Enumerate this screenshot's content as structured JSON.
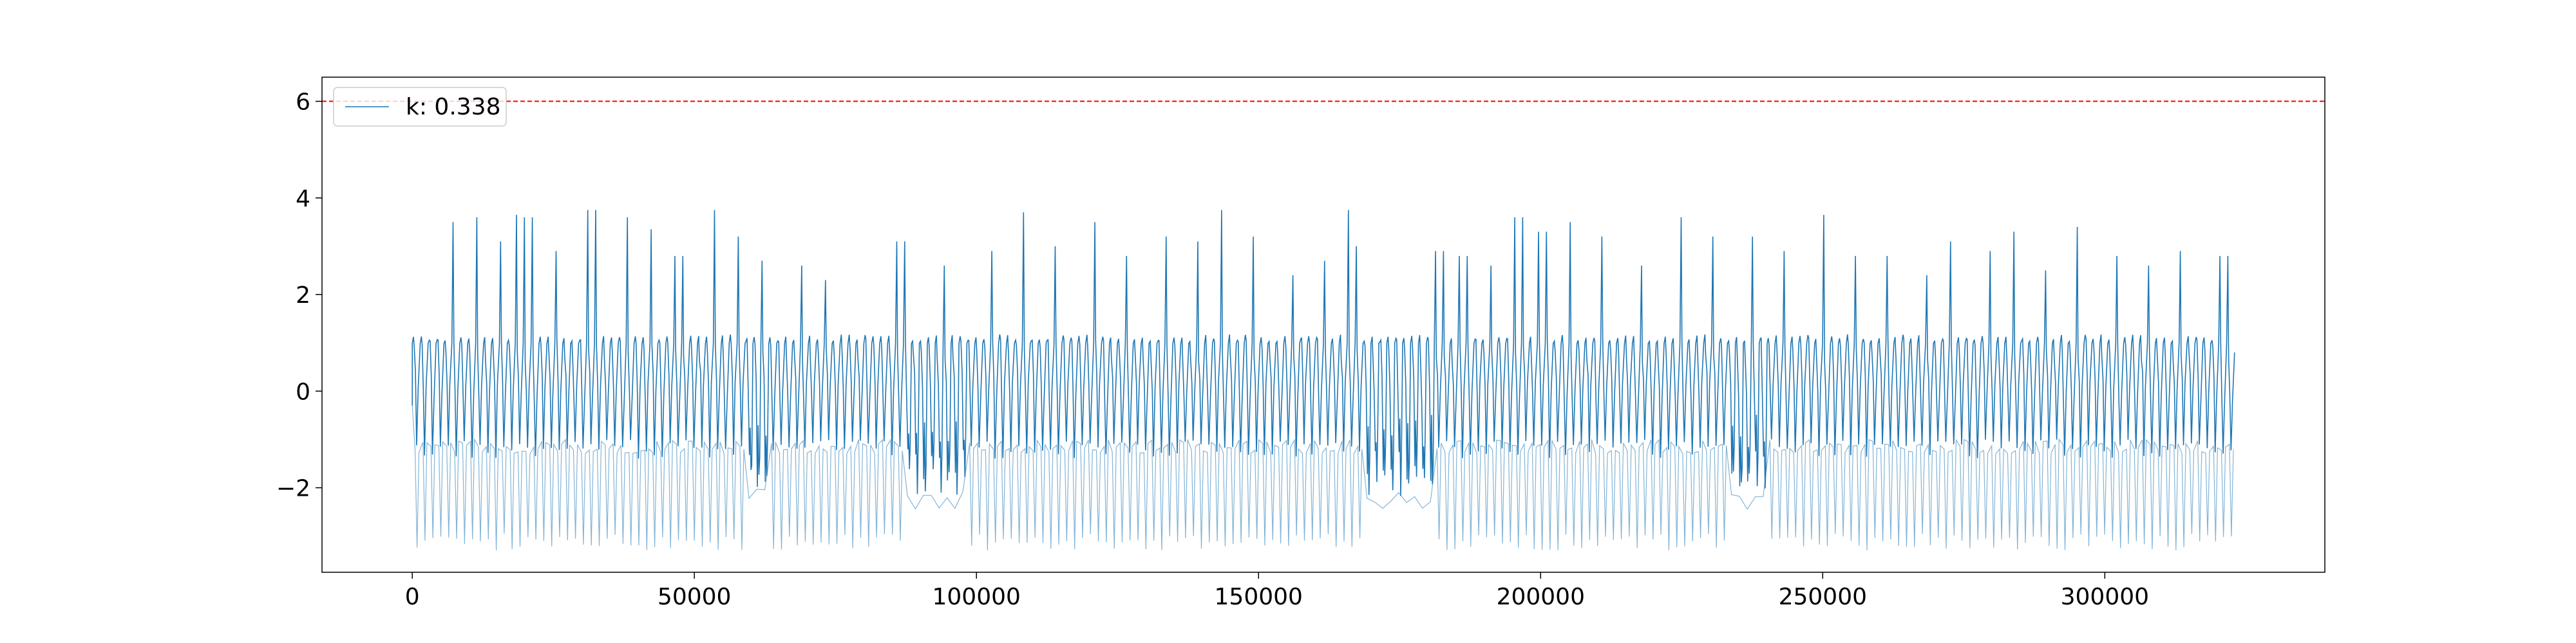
{
  "chart_data": {
    "type": "line",
    "title": "",
    "xlabel": "",
    "ylabel": "",
    "xlim": [
      -16000,
      339000
    ],
    "ylim": [
      -3.75,
      6.5
    ],
    "xticks": [
      0,
      50000,
      100000,
      150000,
      200000,
      250000,
      300000
    ],
    "xtick_labels": [
      "0",
      "50000",
      "100000",
      "150000",
      "200000",
      "250000",
      "300000"
    ],
    "yticks": [
      -2,
      0,
      2,
      4,
      6
    ],
    "ytick_labels": [
      "−2",
      "0",
      "2",
      "4",
      "6"
    ],
    "grid": false,
    "legend": {
      "position": "upper-left",
      "entries": [
        "k: 0.338"
      ]
    },
    "series": [
      {
        "name": "k: 0.338",
        "color": "#1f77b4",
        "x_range": [
          0,
          323000
        ],
        "base_level": 1.1,
        "peak_range": [
          1.0,
          3.75
        ],
        "trough_level": -3.3,
        "noisy_segments": [
          [
            58000,
            63000
          ],
          [
            87000,
            98000
          ],
          [
            168000,
            180000
          ],
          [
            233000,
            240000
          ]
        ],
        "tall_spikes": [
          [
            6500,
            3.5
          ],
          [
            11000,
            3.6
          ],
          [
            15000,
            3.1
          ],
          [
            18500,
            3.65
          ],
          [
            20500,
            3.6
          ],
          [
            25000,
            2.9
          ],
          [
            31500,
            3.75
          ],
          [
            38000,
            3.6
          ],
          [
            42500,
            3.35
          ],
          [
            47000,
            2.8
          ],
          [
            53500,
            3.75
          ],
          [
            57500,
            3.2
          ],
          [
            62000,
            2.7
          ],
          [
            69000,
            2.6
          ],
          [
            73000,
            2.3
          ],
          [
            86500,
            3.1
          ],
          [
            94000,
            2.6
          ],
          [
            102000,
            2.9
          ],
          [
            108000,
            3.7
          ],
          [
            114000,
            3.0
          ],
          [
            121000,
            3.5
          ],
          [
            126000,
            2.8
          ],
          [
            133000,
            3.2
          ],
          [
            139000,
            3.1
          ],
          [
            143500,
            3.75
          ],
          [
            149000,
            3.2
          ],
          [
            156000,
            2.4
          ],
          [
            161500,
            2.7
          ],
          [
            165500,
            3.75
          ],
          [
            167500,
            3.0
          ],
          [
            175000,
            1.1
          ],
          [
            182000,
            2.9
          ],
          [
            186000,
            2.8
          ],
          [
            191000,
            2.6
          ],
          [
            196000,
            3.6
          ],
          [
            200000,
            3.3
          ],
          [
            205000,
            3.5
          ],
          [
            211000,
            3.2
          ],
          [
            218000,
            2.6
          ],
          [
            224500,
            3.6
          ],
          [
            230000,
            3.2
          ],
          [
            237000,
            3.2
          ],
          [
            243000,
            2.9
          ],
          [
            249500,
            3.65
          ],
          [
            256000,
            2.8
          ],
          [
            261000,
            2.8
          ],
          [
            268000,
            2.4
          ],
          [
            273000,
            3.1
          ],
          [
            279000,
            2.9
          ],
          [
            284000,
            3.3
          ],
          [
            289000,
            2.5
          ],
          [
            295000,
            3.4
          ],
          [
            302000,
            2.8
          ],
          [
            308000,
            2.6
          ],
          [
            313000,
            2.9
          ],
          [
            321000,
            2.8
          ]
        ]
      }
    ],
    "reference_lines": [
      {
        "orientation": "horizontal",
        "y": 6,
        "color": "#ff0000",
        "style": "dashed"
      }
    ]
  }
}
